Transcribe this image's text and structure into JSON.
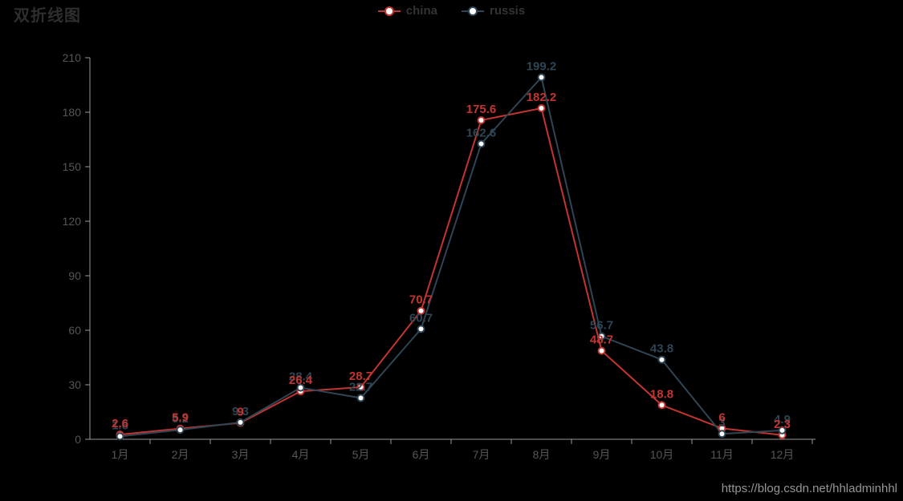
{
  "title": "双折线图",
  "legend": {
    "items": [
      {
        "label": "china",
        "color": "#c23531"
      },
      {
        "label": "russis",
        "color": "#2f4554"
      }
    ]
  },
  "watermark": "https://blog.csdn.net/hhladminhhl",
  "chart_data": {
    "type": "line",
    "title": "双折线图",
    "categories": [
      "1月",
      "2月",
      "3月",
      "4月",
      "5月",
      "6月",
      "7月",
      "8月",
      "9月",
      "10月",
      "11月",
      "12月"
    ],
    "series": [
      {
        "name": "china",
        "color": "#c23531",
        "values": [
          2.6,
          5.9,
          9,
          26.4,
          28.7,
          70.7,
          175.6,
          182.2,
          48.7,
          18.8,
          6,
          2.3
        ]
      },
      {
        "name": "russis",
        "color": "#2f4554",
        "values": [
          1.6,
          5.2,
          9.3,
          28.4,
          22.7,
          60.7,
          162.6,
          199.2,
          56.7,
          43.8,
          3,
          4.9
        ]
      }
    ],
    "xlabel": "",
    "ylabel": "",
    "ylim": [
      0,
      210
    ],
    "y_ticks": [
      0,
      30,
      60,
      90,
      120,
      150,
      180,
      210
    ],
    "grid": false,
    "legend_position": "top-center",
    "marker_style": "hollow-circle-white-fill",
    "colors": {
      "background": "#000000",
      "axis_line": "#999999",
      "axis_text": "#565656",
      "marker_fill": "#ffffff"
    }
  }
}
